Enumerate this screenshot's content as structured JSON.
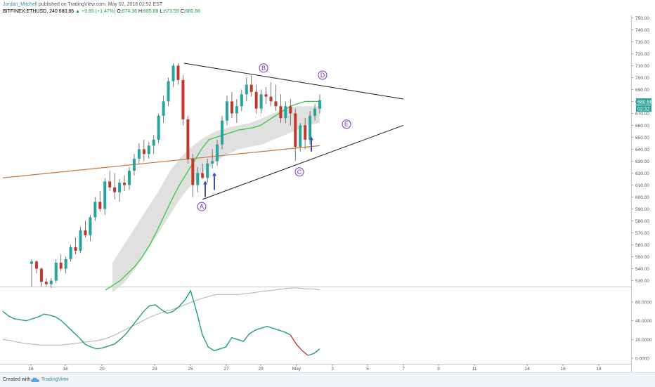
{
  "header": {
    "author": "Jordan_Mitchell",
    "published_text": "published on TradingView.com, May 02, 2018 02:52 EST",
    "symbol": "BITFINEX:ETHUSD, 240",
    "last": "680.86",
    "change": "▲ +9.85 (+1.47%)",
    "o_label": "O:",
    "o_value": "674.36",
    "h_label": "H:",
    "h_value": "685.88",
    "l_label": "L:",
    "l_value": "673.59",
    "c_label": "C:",
    "c_value": "680.86"
  },
  "price_badges": {
    "price": "680.86",
    "countdown": "02:32"
  },
  "footer": {
    "created_with": "Created with",
    "brand": "TradingView"
  },
  "colors": {
    "up": "#26a69a",
    "down": "#c0392b",
    "ema": "#2ecc40",
    "ma": "#c87533",
    "band": "#dadada",
    "indicator": "#1e9e7a",
    "indicator_tail": "#d32f2f",
    "indicator_ma": "#b0b0b0",
    "triangle": "#1a1a1a",
    "label": "#7b2fbe",
    "arrow": "#3d4db7"
  },
  "chart_data": [
    {
      "type": "candlestick",
      "symbol": "BITFINEX:ETHUSD",
      "interval": "240",
      "x_ticks": [
        "16",
        "18",
        "20",
        "23",
        "25",
        "27",
        "29",
        "May",
        "3",
        "5",
        "7",
        "9",
        "11",
        "14",
        "16",
        "18"
      ],
      "y_ticks": [
        "750.00",
        "740.00",
        "730.00",
        "720.00",
        "710.00",
        "700.00",
        "690.00",
        "680.00",
        "670.00",
        "660.00",
        "650.00",
        "640.00",
        "630.00",
        "620.00",
        "610.00",
        "600.00",
        "590.00",
        "580.00",
        "570.00",
        "560.00",
        "550.00",
        "540.00",
        "530.00"
      ],
      "ylim": [
        525,
        752
      ],
      "candles": [
        [
          544,
          548,
          525,
          546
        ],
        [
          546,
          547,
          536,
          540
        ],
        [
          540,
          541,
          525,
          529
        ],
        [
          529,
          532,
          525,
          527
        ],
        [
          527,
          532,
          524,
          530
        ],
        [
          530,
          548,
          528,
          545
        ],
        [
          545,
          552,
          538,
          540
        ],
        [
          540,
          550,
          536,
          548
        ],
        [
          548,
          560,
          546,
          558
        ],
        [
          558,
          566,
          552,
          555
        ],
        [
          555,
          575,
          553,
          572
        ],
        [
          572,
          580,
          566,
          568
        ],
        [
          568,
          585,
          563,
          583
        ],
        [
          583,
          600,
          580,
          596
        ],
        [
          596,
          605,
          588,
          590
        ],
        [
          590,
          616,
          585,
          613
        ],
        [
          613,
          622,
          605,
          608
        ],
        [
          608,
          620,
          598,
          604
        ],
        [
          604,
          615,
          596,
          612
        ],
        [
          612,
          618,
          605,
          610
        ],
        [
          610,
          625,
          606,
          622
        ],
        [
          622,
          636,
          618,
          632
        ],
        [
          632,
          645,
          628,
          640
        ],
        [
          640,
          648,
          630,
          636
        ],
        [
          636,
          646,
          632,
          643
        ],
        [
          643,
          652,
          636,
          648
        ],
        [
          648,
          670,
          645,
          668
        ],
        [
          668,
          685,
          662,
          680
        ],
        [
          680,
          700,
          676,
          697
        ],
        [
          697,
          712,
          692,
          710
        ],
        [
          710,
          712,
          694,
          698
        ],
        [
          698,
          702,
          660,
          665
        ],
        [
          665,
          668,
          628,
          632
        ],
        [
          632,
          636,
          600,
          610
        ],
        [
          610,
          625,
          604,
          620
        ],
        [
          620,
          628,
          615,
          616
        ],
        [
          616,
          632,
          612,
          628
        ],
        [
          628,
          640,
          624,
          630
        ],
        [
          630,
          648,
          626,
          644
        ],
        [
          644,
          668,
          640,
          664
        ],
        [
          664,
          685,
          660,
          680
        ],
        [
          680,
          688,
          666,
          670
        ],
        [
          670,
          682,
          662,
          676
        ],
        [
          676,
          690,
          672,
          686
        ],
        [
          686,
          700,
          680,
          694
        ],
        [
          694,
          702,
          684,
          688
        ],
        [
          688,
          694,
          670,
          674
        ],
        [
          674,
          690,
          670,
          686
        ],
        [
          686,
          692,
          678,
          684
        ],
        [
          684,
          696,
          676,
          680
        ],
        [
          680,
          694,
          672,
          676
        ],
        [
          676,
          686,
          662,
          666
        ],
        [
          666,
          680,
          662,
          676
        ],
        [
          676,
          682,
          660,
          670
        ],
        [
          670,
          674,
          630,
          642
        ],
        [
          642,
          662,
          638,
          660
        ],
        [
          660,
          666,
          640,
          648
        ],
        [
          648,
          672,
          644,
          668
        ],
        [
          668,
          678,
          664,
          674
        ],
        [
          674,
          686,
          670,
          681
        ]
      ],
      "overlays": {
        "ma_line_endpoints": [
          {
            "x": "start",
            "y": 616
          },
          {
            "x": "last",
            "y": 643
          }
        ],
        "ema": [
          522,
          526,
          530,
          536,
          542,
          550,
          560,
          572,
          585,
          598,
          610,
          620,
          630,
          640,
          648,
          650,
          652,
          654,
          656,
          657,
          658,
          660,
          664,
          668,
          672,
          676,
          678,
          680,
          680,
          680
        ],
        "band_upper": [
          545,
          560,
          575,
          590,
          605,
          622,
          634,
          643,
          650,
          655,
          658,
          660,
          662,
          666,
          670,
          674,
          676,
          676,
          676
        ],
        "band_lower": [
          520,
          528,
          540,
          555,
          570,
          585,
          600,
          612,
          622,
          630,
          636,
          640,
          642,
          644,
          648,
          652,
          656,
          660,
          662
        ]
      },
      "pattern": {
        "name": "symmetrical triangle",
        "points": [
          "A",
          "B",
          "C",
          "D",
          "E"
        ],
        "upper_line": [
          712,
          682
        ],
        "lower_line": [
          598,
          660
        ]
      },
      "annotations": [
        "A",
        "B",
        "C",
        "D",
        "E"
      ]
    },
    {
      "type": "line",
      "y_ticks": [
        "60.0000",
        "40.0000",
        "20.0000",
        "0.0000"
      ],
      "ylim": [
        -6,
        75
      ],
      "series": [
        {
          "values": [
            50,
            45,
            42,
            41,
            40,
            42,
            44,
            47,
            46,
            44,
            40,
            34,
            28,
            22,
            15,
            12,
            10,
            11,
            13,
            15,
            20,
            26,
            34,
            42,
            50,
            56,
            57,
            52,
            48,
            50,
            55,
            62,
            72,
            50,
            25,
            12,
            8,
            10,
            12,
            22,
            20,
            18,
            26,
            30,
            32,
            34,
            32,
            30,
            28,
            25,
            15,
            8,
            3,
            5,
            10
          ]
        },
        {
          "values": [
            20,
            19,
            17,
            16,
            15,
            14,
            14,
            14,
            14,
            15,
            16,
            17,
            18,
            19,
            21,
            24,
            28,
            32,
            36,
            40,
            44,
            47,
            50,
            52,
            55,
            58,
            61,
            64,
            66,
            68,
            68,
            68,
            68,
            69,
            70,
            71,
            72,
            73,
            74,
            75,
            75,
            74,
            74,
            73
          ]
        }
      ]
    }
  ]
}
